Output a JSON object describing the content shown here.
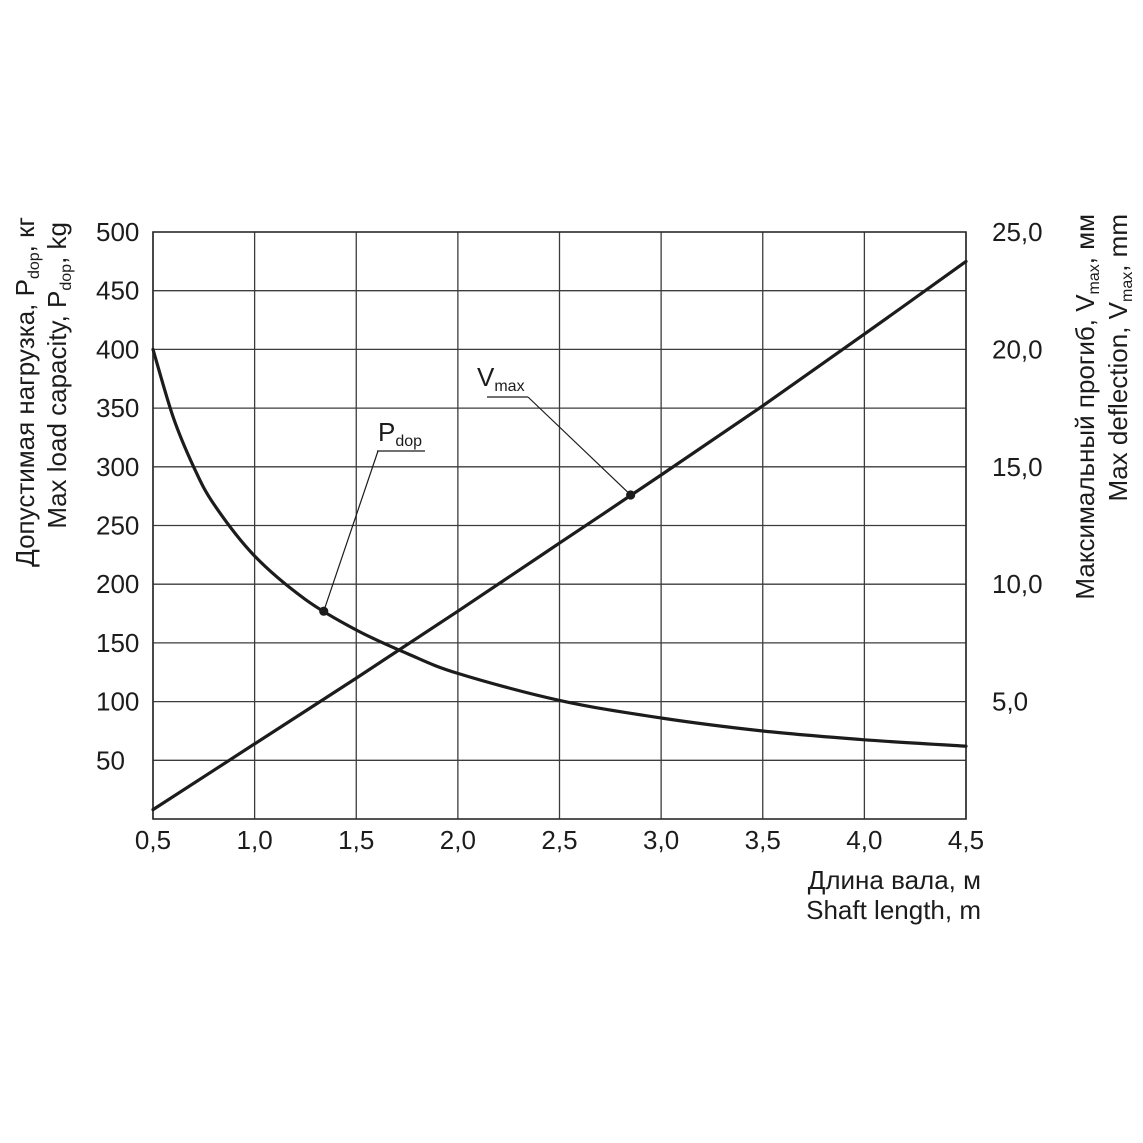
{
  "chart_data": {
    "type": "line",
    "grid": true,
    "colors": {
      "line": "#1c1c1c",
      "grid": "#3c3c3c",
      "background": "#ffffff"
    },
    "x_axis": {
      "label_lines": [
        "Длина вала, м",
        "Shaft length, m"
      ],
      "range": [
        0.5,
        4.5
      ],
      "ticks": [
        {
          "value": 0.5,
          "label": "0,5"
        },
        {
          "value": 1.0,
          "label": "1,0"
        },
        {
          "value": 1.5,
          "label": "1,5"
        },
        {
          "value": 2.0,
          "label": "2,0"
        },
        {
          "value": 2.5,
          "label": "2,5"
        },
        {
          "value": 3.0,
          "label": "3,0"
        },
        {
          "value": 3.5,
          "label": "3,5"
        },
        {
          "value": 4.0,
          "label": "4,0"
        },
        {
          "value": 4.5,
          "label": "4,5"
        }
      ]
    },
    "y_axis_left": {
      "label_lines": [
        {
          "pre": "Допустимая нагрузка, P",
          "sub": "dop",
          "post": ", кг"
        },
        {
          "pre": "Max load capacity, P",
          "sub": "dop",
          "post": ", kg"
        }
      ],
      "range": [
        0,
        500
      ],
      "grid_step": 50,
      "ticks": [
        {
          "value": 50,
          "label": "50"
        },
        {
          "value": 100,
          "label": "100"
        },
        {
          "value": 150,
          "label": "150"
        },
        {
          "value": 200,
          "label": "200"
        },
        {
          "value": 250,
          "label": "250"
        },
        {
          "value": 300,
          "label": "300"
        },
        {
          "value": 350,
          "label": "350"
        },
        {
          "value": 400,
          "label": "400"
        },
        {
          "value": 450,
          "label": "450"
        },
        {
          "value": 500,
          "label": "500"
        }
      ]
    },
    "y_axis_right": {
      "label_lines": [
        {
          "pre": "Максимальный прогиб, V",
          "sub": "max",
          "post": ", мм"
        },
        {
          "pre": "Max deflection, V",
          "sub": "max",
          "post": ", mm"
        }
      ],
      "range": [
        0,
        25
      ],
      "ticks": [
        {
          "value": 5,
          "label": "5,0"
        },
        {
          "value": 10,
          "label": "10,0"
        },
        {
          "value": 15,
          "label": "15,0"
        },
        {
          "value": 20,
          "label": "20,0"
        },
        {
          "value": 25,
          "label": "25,0"
        }
      ]
    },
    "series": [
      {
        "label": {
          "main": "P",
          "sub": "dop"
        },
        "axis": "left",
        "x": [
          0.5,
          0.6,
          0.7,
          0.8,
          1.0,
          1.25,
          1.5,
          1.75,
          2.0,
          2.5,
          3.0,
          3.5,
          4.0,
          4.5
        ],
        "y": [
          400,
          342,
          300,
          268,
          224,
          187,
          161,
          141,
          124,
          101,
          86,
          75,
          67.5,
          62
        ],
        "marker": {
          "x": 1.34,
          "y": 177
        }
      },
      {
        "label": {
          "main": "V",
          "sub": "max"
        },
        "axis": "right",
        "x": [
          0.5,
          1.0,
          1.5,
          2.0,
          2.5,
          3.0,
          3.5,
          4.0,
          4.5
        ],
        "y": [
          0.4,
          3.2,
          6.0,
          8.85,
          11.75,
          14.65,
          17.6,
          20.65,
          23.75
        ],
        "marker": {
          "x": 2.85,
          "y": 13.8
        }
      }
    ]
  }
}
